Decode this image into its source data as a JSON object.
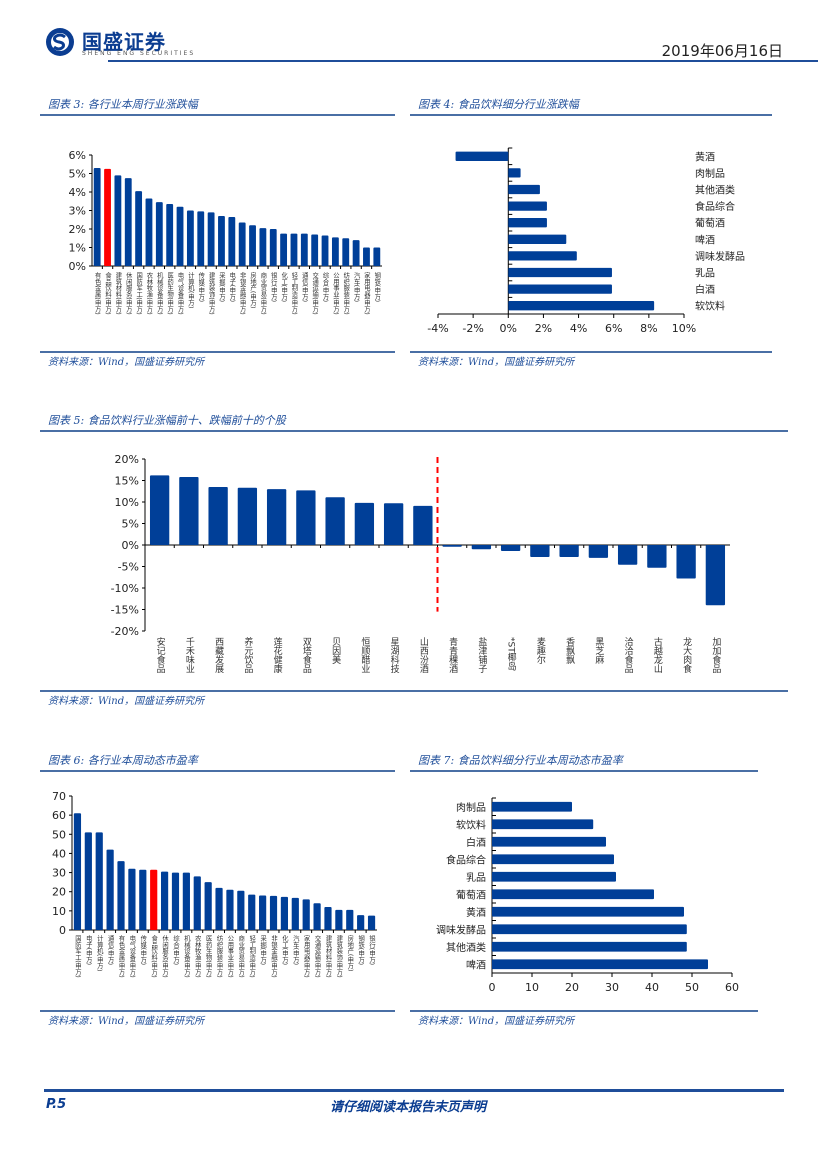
{
  "header": {
    "logo_cn": "国盛证券",
    "logo_en": "SHENG ENG SECURITIES",
    "date": "2019年06月16日"
  },
  "colors": {
    "bar": "#003F98",
    "highlight": "#FF0000",
    "accent": "#1F4E9A"
  },
  "figures": [
    {
      "title": "图表 3:  各行业本周行业涨跌幅",
      "source": "资料来源：Wind，国盛证券研究所"
    },
    {
      "title": "图表 4:  食品饮料细分行业涨跌幅",
      "source": "资料来源：Wind，国盛证券研究所"
    },
    {
      "title": "图表 5:  食品饮料行业涨幅前十、跌幅前十的个股",
      "source": "资料来源：Wind，国盛证券研究所"
    },
    {
      "title": "图表 6:  各行业本周动态市盈率",
      "source": "资料来源：Wind，国盛证券研究所"
    },
    {
      "title": "图表 7:  食品饮料细分行业本周动态市盈率",
      "source": "资料来源：Wind，国盛证券研究所"
    }
  ],
  "footer": {
    "page": "P.5",
    "note": "请仔细阅读本报告末页声明"
  },
  "chart_data": [
    {
      "id": "fig3",
      "type": "bar",
      "title": "各行业本周行业涨跌幅",
      "categories": [
        "有色金属(申万)",
        "食品饮料(申万)",
        "建筑材料(申万)",
        "休闲服务(申万)",
        "国防军工(申万)",
        "农林牧渔(申万)",
        "机械设备(申万)",
        "医药生物(申万)",
        "电气设备(申万)",
        "计算机(申万)",
        "传媒(申万)",
        "建筑装饰(申万)",
        "采掘(申万)",
        "电子(申万)",
        "非银金融(申万)",
        "房地产(申万)",
        "商业贸易(申万)",
        "银行(申万)",
        "化工(申万)",
        "轻工制造(申万)",
        "通信(申万)",
        "交通运输(申万)",
        "综合(申万)",
        "公用事业(申万)",
        "纺织服装(申万)",
        "汽车(申万)",
        "家用电器(申万)",
        "钢铁(申万)"
      ],
      "values": [
        5.3,
        5.25,
        4.9,
        4.75,
        4.05,
        3.65,
        3.45,
        3.35,
        3.2,
        3.0,
        2.95,
        2.9,
        2.7,
        2.65,
        2.35,
        2.2,
        2.05,
        2.0,
        1.75,
        1.75,
        1.75,
        1.7,
        1.65,
        1.55,
        1.5,
        1.4,
        1.0,
        1.0
      ],
      "highlight_index": 1,
      "ylim": [
        0,
        6
      ],
      "yticks": [
        "0%",
        "1%",
        "2%",
        "3%",
        "4%",
        "5%",
        "6%"
      ],
      "unit": "%"
    },
    {
      "id": "fig4",
      "type": "bar",
      "orientation": "horizontal",
      "title": "食品饮料细分行业涨跌幅",
      "categories": [
        "黄酒",
        "肉制品",
        "其他酒类",
        "食品综合",
        "葡萄酒",
        "啤酒",
        "调味发酵品",
        "乳品",
        "白酒",
        "软饮料"
      ],
      "values": [
        -3.0,
        0.7,
        1.8,
        2.2,
        2.2,
        3.3,
        3.9,
        5.9,
        5.9,
        8.3
      ],
      "xlim": [
        -4,
        10
      ],
      "xticks": [
        "-4%",
        "-2%",
        "0%",
        "2%",
        "4%",
        "6%",
        "8%",
        "10%"
      ],
      "unit": "%"
    },
    {
      "id": "fig5",
      "type": "bar",
      "title": "食品饮料行业涨幅前十、跌幅前十的个股",
      "categories": [
        "安记食品",
        "千禾味业",
        "西藏发展",
        "养元饮品",
        "莲花健康",
        "双塔食品",
        "贝因美",
        "恒顺醋业",
        "星湖科技",
        "山西汾酒",
        "青青稞酒",
        "盐津铺子",
        "*ST椰岛",
        "麦趣尔",
        "香飘飘",
        "黑芝麻",
        "洽洽食品",
        "古越龙山",
        "龙大肉食",
        "加加食品"
      ],
      "values": [
        16.2,
        15.8,
        13.5,
        13.3,
        13.0,
        12.7,
        11.1,
        9.8,
        9.7,
        9.1,
        -0.4,
        -1.0,
        -1.4,
        -2.8,
        -2.8,
        -3.0,
        -4.6,
        -5.3,
        -7.8,
        -14.0
      ],
      "divider_after_index": 9,
      "ylim": [
        -20,
        20
      ],
      "yticks": [
        "-20%",
        "-15%",
        "-10%",
        "-5%",
        "0%",
        "5%",
        "10%",
        "15%",
        "20%"
      ],
      "unit": "%"
    },
    {
      "id": "fig6",
      "type": "bar",
      "title": "各行业本周动态市盈率",
      "categories": [
        "国防军工(申万)",
        "电子(申万)",
        "计算机(申万)",
        "通信(申万)",
        "有色金属(申万)",
        "电气设备(申万)",
        "传媒(申万)",
        "食品饮料(申万)",
        "休闲服务(申万)",
        "综合(申万)",
        "机械设备(申万)",
        "农林牧渔(申万)",
        "医药生物(申万)",
        "纺织服装(申万)",
        "公用事业(申万)",
        "商业贸易(申万)",
        "轻工制造(申万)",
        "采掘(申万)",
        "非银金融(申万)",
        "化工(申万)",
        "汽车(申万)",
        "家用电器(申万)",
        "交通运输(申万)",
        "建筑材料(申万)",
        "建筑装饰(申万)",
        "房地产(申万)",
        "钢铁(申万)",
        "银行(申万)"
      ],
      "values": [
        61,
        51,
        51,
        42,
        36,
        32,
        31.5,
        31.5,
        30.5,
        30,
        30,
        28,
        25,
        22,
        21,
        20.5,
        18.5,
        18,
        17.8,
        17.3,
        16.8,
        16,
        14,
        12,
        10.5,
        10.5,
        7.8,
        7.5
      ],
      "highlight_index": 7,
      "ylim": [
        0,
        70
      ],
      "yticks": [
        "0",
        "10",
        "20",
        "30",
        "40",
        "50",
        "60",
        "70"
      ]
    },
    {
      "id": "fig7",
      "type": "bar",
      "orientation": "horizontal",
      "title": "食品饮料细分行业本周动态市盈率",
      "categories": [
        "肉制品",
        "软饮料",
        "白酒",
        "食品综合",
        "乳品",
        "葡萄酒",
        "黄酒",
        "调味发酵品",
        "其他酒类",
        "啤酒"
      ],
      "values": [
        20,
        25.3,
        28.5,
        30.5,
        31,
        40.5,
        48,
        48.7,
        48.7,
        54
      ],
      "xlim": [
        0,
        60
      ],
      "xticks": [
        "0",
        "10",
        "20",
        "30",
        "40",
        "50",
        "60"
      ]
    }
  ]
}
